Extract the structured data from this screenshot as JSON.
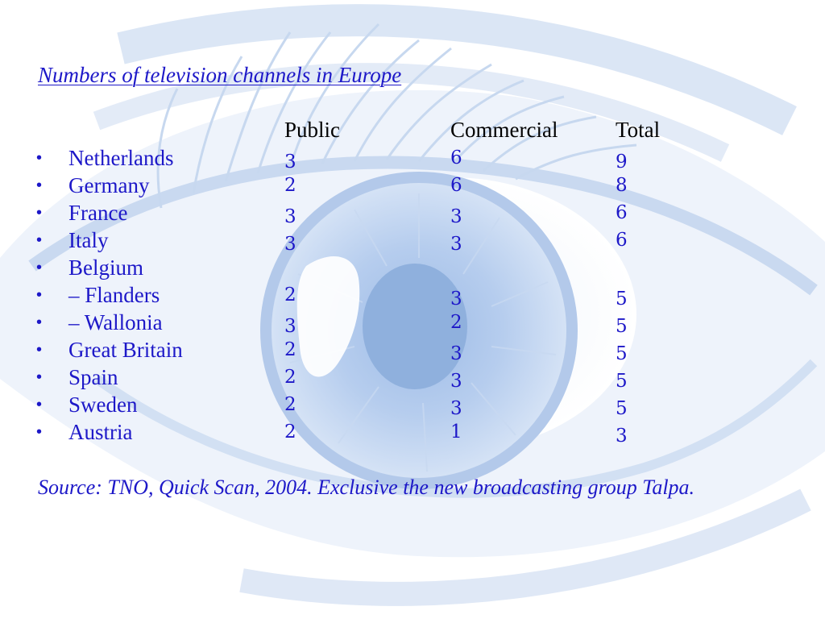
{
  "title": "Numbers of television channels in Europe",
  "columns": {
    "public": "Public",
    "commercial": "Commercial",
    "total": "Total"
  },
  "bullet_char": "•",
  "rows": [
    {
      "country": "Netherlands",
      "public": "3",
      "commercial": "6",
      "total": "9"
    },
    {
      "country": "Germany",
      "public": "2",
      "commercial": "6",
      "total": "8"
    },
    {
      "country": "France",
      "public": "3",
      "commercial": "3",
      "total": "6"
    },
    {
      "country": "Italy",
      "public": "3",
      "commercial": "3",
      "total": "6"
    },
    {
      "country": "Belgium",
      "public": "",
      "commercial": "",
      "total": ""
    },
    {
      "country": "– Flanders",
      "public": "2",
      "commercial": "3",
      "total": "5"
    },
    {
      "country": "– Wallonia",
      "public": "3",
      "commercial": "2",
      "total": "5"
    },
    {
      "country": "Great Britain",
      "public": "2",
      "commercial": "3",
      "total": "5"
    },
    {
      "country": "Spain",
      "public": "2",
      "commercial": "3",
      "total": "5"
    },
    {
      "country": "Sweden",
      "public": "2",
      "commercial": "3",
      "total": "5"
    },
    {
      "country": "Austria",
      "public": "2",
      "commercial": "1",
      "total": "3"
    }
  ],
  "source": "Source: TNO, Quick Scan, 2004. Exclusive the new broadcasting group Talpa.",
  "colors": {
    "text_blue": "#1d18c8",
    "eye_light": "#e4edf8",
    "eye_mid": "#c2d6ef",
    "iris": "#8fb0dd"
  },
  "background_icon": "eye-icon"
}
